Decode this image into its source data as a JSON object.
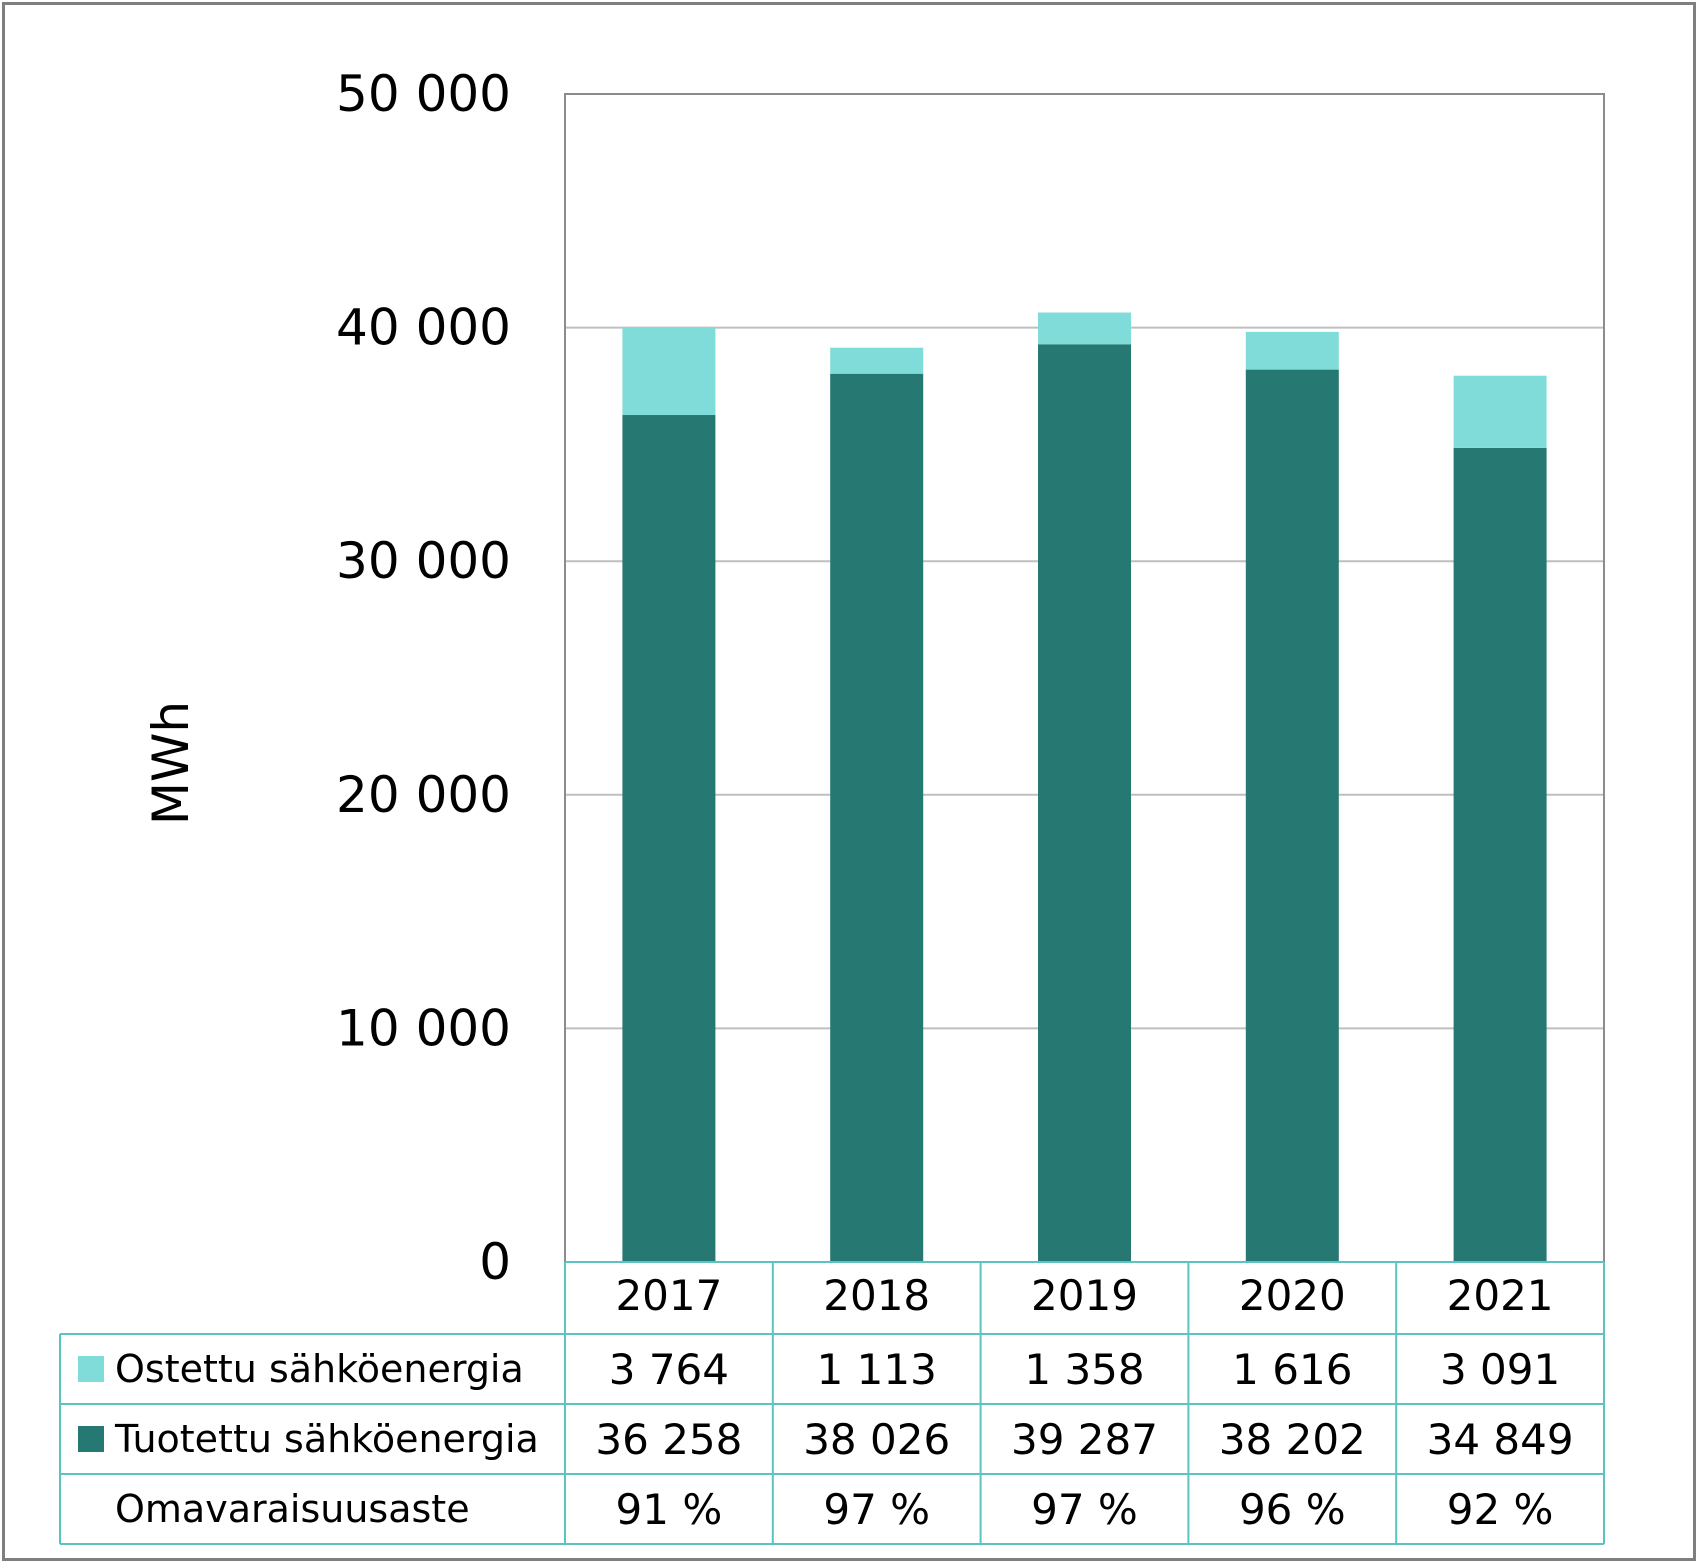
{
  "chart_data": {
    "type": "bar",
    "stacked": true,
    "categories": [
      "2017",
      "2018",
      "2019",
      "2020",
      "2021"
    ],
    "series": [
      {
        "name": "Tuotettu sähköenergia",
        "color": "#267873",
        "values": [
          36258,
          38026,
          39287,
          38202,
          34849
        ],
        "labels": [
          "36 258",
          "38 026",
          "39 287",
          "38 202",
          "34 849"
        ]
      },
      {
        "name": "Ostettu sähköenergia",
        "color": "#80dcd8",
        "values": [
          3764,
          1113,
          1358,
          1616,
          3091
        ],
        "labels": [
          "3 764",
          "1 113",
          "1 358",
          "1 616",
          "3 091"
        ]
      }
    ],
    "table_rows": [
      {
        "label": "Ostettu sähköenergia",
        "series": 1
      },
      {
        "label": "Tuotettu sähköenergia",
        "series": 0
      },
      {
        "label": "Omavaraisuusaste",
        "series": null,
        "values": [
          "91 %",
          "97 %",
          "97 %",
          "96 %",
          "92 %"
        ]
      }
    ],
    "ylabel": "MWh",
    "ylim": [
      0,
      50000
    ],
    "yticks": [
      0,
      10000,
      20000,
      30000,
      40000,
      50000
    ],
    "ytick_labels": [
      "0",
      "10 000",
      "20 000",
      "30 000",
      "40 000",
      "50 000"
    ],
    "grid": true,
    "legend": "data-table"
  }
}
